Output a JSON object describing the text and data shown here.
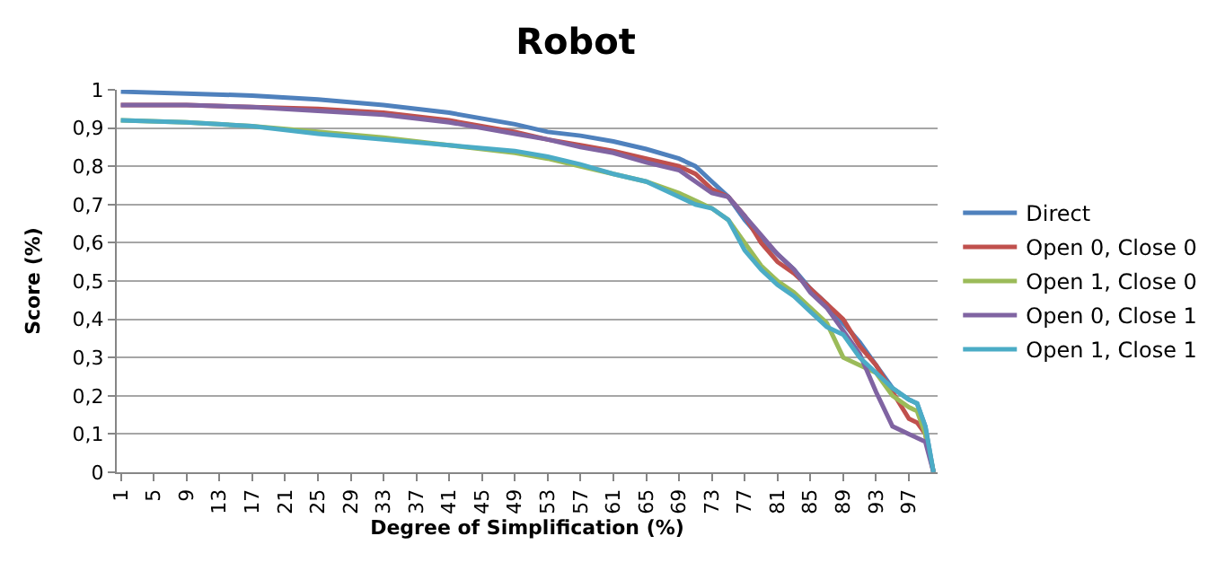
{
  "chart_data": {
    "type": "line",
    "title": "Robot",
    "xlabel": "Degree of Simplification (%)",
    "ylabel": "Score (%)",
    "x": [
      1,
      9,
      17,
      25,
      33,
      41,
      49,
      53,
      57,
      61,
      65,
      69,
      71,
      73,
      75,
      77,
      79,
      81,
      83,
      85,
      87,
      89,
      91,
      93,
      95,
      97,
      98,
      99,
      100
    ],
    "xlim": [
      0.5,
      100.5
    ],
    "xticks": [
      1,
      5,
      9,
      13,
      17,
      21,
      25,
      29,
      33,
      37,
      41,
      45,
      49,
      53,
      57,
      61,
      65,
      69,
      73,
      77,
      81,
      85,
      89,
      93,
      97
    ],
    "ylim": [
      0,
      1
    ],
    "yticks": [
      0,
      {
        "value": 0.1,
        "label": "0,1"
      },
      {
        "value": 0.2,
        "label": "0,2"
      },
      {
        "value": 0.3,
        "label": "0,3"
      },
      {
        "value": 0.4,
        "label": "0,4"
      },
      {
        "value": 0.5,
        "label": "0,5"
      },
      {
        "value": 0.6,
        "label": "0,6"
      },
      {
        "value": 0.7,
        "label": "0,7"
      },
      {
        "value": 0.8,
        "label": "0,8"
      },
      {
        "value": 0.9,
        "label": "0,9"
      },
      1
    ],
    "grid": "y",
    "legend": "right",
    "marker": "none",
    "line_style": "solid",
    "series": [
      {
        "name": "Direct",
        "color": "#4f81bd",
        "values": [
          0.995,
          0.99,
          0.985,
          0.975,
          0.96,
          0.94,
          0.91,
          0.89,
          0.88,
          0.865,
          0.845,
          0.82,
          0.8,
          0.76,
          0.72,
          0.66,
          0.61,
          0.57,
          0.53,
          0.48,
          0.44,
          0.39,
          0.34,
          0.28,
          0.22,
          0.19,
          0.18,
          0.12,
          0
        ]
      },
      {
        "name": "Open 0, Close 0",
        "color": "#c0504d",
        "values": [
          0.96,
          0.96,
          0.955,
          0.95,
          0.94,
          0.92,
          0.89,
          0.87,
          0.855,
          0.84,
          0.82,
          0.8,
          0.78,
          0.74,
          0.72,
          0.67,
          0.6,
          0.55,
          0.52,
          0.48,
          0.44,
          0.4,
          0.33,
          0.28,
          0.21,
          0.14,
          0.13,
          0.1,
          0
        ]
      },
      {
        "name": "Open 1, Close 0",
        "color": "#9bbb59",
        "values": [
          0.92,
          0.915,
          0.905,
          0.89,
          0.875,
          0.855,
          0.835,
          0.82,
          0.8,
          0.78,
          0.76,
          0.73,
          0.71,
          0.69,
          0.66,
          0.6,
          0.54,
          0.5,
          0.47,
          0.43,
          0.39,
          0.3,
          0.28,
          0.26,
          0.2,
          0.17,
          0.16,
          0.1,
          0
        ]
      },
      {
        "name": "Open 0, Close 1",
        "color": "#8064a2",
        "values": [
          0.96,
          0.96,
          0.955,
          0.945,
          0.935,
          0.915,
          0.885,
          0.87,
          0.85,
          0.835,
          0.81,
          0.79,
          0.76,
          0.73,
          0.72,
          0.67,
          0.62,
          0.57,
          0.53,
          0.47,
          0.43,
          0.37,
          0.31,
          0.21,
          0.12,
          0.1,
          0.09,
          0.08,
          0
        ]
      },
      {
        "name": "Open 1, Close 1",
        "color": "#4bacc6",
        "values": [
          0.92,
          0.915,
          0.905,
          0.885,
          0.87,
          0.855,
          0.84,
          0.825,
          0.805,
          0.78,
          0.76,
          0.72,
          0.7,
          0.69,
          0.66,
          0.58,
          0.53,
          0.49,
          0.46,
          0.42,
          0.38,
          0.36,
          0.3,
          0.26,
          0.22,
          0.19,
          0.18,
          0.12,
          0
        ]
      }
    ]
  }
}
